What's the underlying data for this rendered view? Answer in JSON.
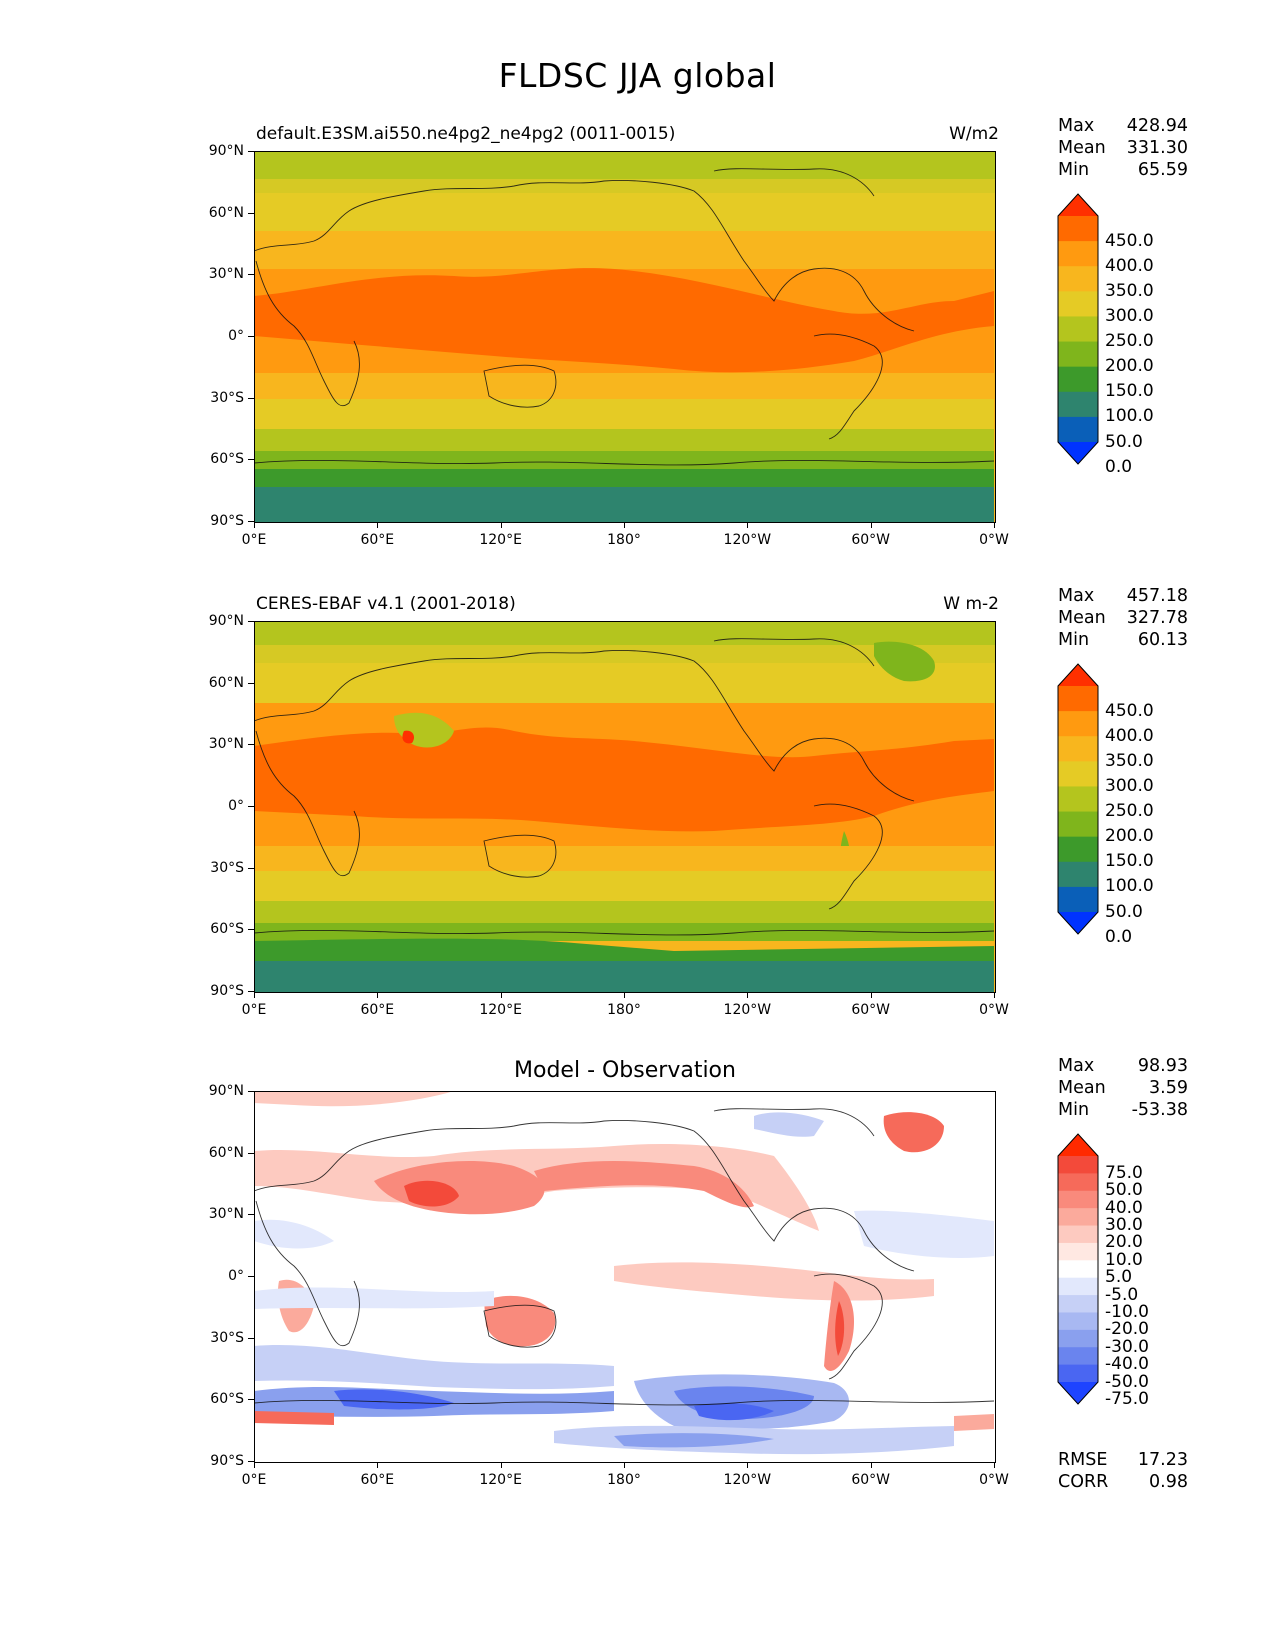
{
  "title": "FLDSC JJA global",
  "lat_labels": [
    "90°N",
    "60°N",
    "30°N",
    "0°",
    "30°S",
    "60°S",
    "90°S"
  ],
  "lon_labels": [
    "0°E",
    "60°E",
    "120°E",
    "180°",
    "120°W",
    "60°W",
    "0°W"
  ],
  "panels": [
    {
      "left_title": "default.E3SM.ai550.ne4pg2_ne4pg2 (0011-0015)",
      "right_title": "W/m2",
      "center_title": "",
      "stats": [
        {
          "label": "Max",
          "value": "428.94"
        },
        {
          "label": "Mean",
          "value": "331.30"
        },
        {
          "label": "Min",
          "value": "65.59"
        }
      ],
      "colorbar": {
        "labels": [
          "450.0",
          "400.0",
          "350.0",
          "300.0",
          "250.0",
          "200.0",
          "150.0",
          "100.0",
          "50.0",
          "0.0"
        ],
        "colors": [
          "#ff3000",
          "#ff6a00",
          "#ff9a10",
          "#f8b61e",
          "#e5cb25",
          "#b4c51e",
          "#7fb51c",
          "#3d9a2b",
          "#2e846e",
          "#0a5fb8",
          "#0033ff"
        ]
      },
      "extra_stats": []
    },
    {
      "left_title": "CERES-EBAF v4.1 (2001-2018)",
      "right_title": "W m-2",
      "center_title": "",
      "stats": [
        {
          "label": "Max",
          "value": "457.18"
        },
        {
          "label": "Mean",
          "value": "327.78"
        },
        {
          "label": "Min",
          "value": "60.13"
        }
      ],
      "colorbar": {
        "labels": [
          "450.0",
          "400.0",
          "350.0",
          "300.0",
          "250.0",
          "200.0",
          "150.0",
          "100.0",
          "50.0",
          "0.0"
        ],
        "colors": [
          "#ff3000",
          "#ff6a00",
          "#ff9a10",
          "#f8b61e",
          "#e5cb25",
          "#b4c51e",
          "#7fb51c",
          "#3d9a2b",
          "#2e846e",
          "#0a5fb8",
          "#0033ff"
        ]
      },
      "extra_stats": []
    },
    {
      "left_title": "",
      "right_title": "",
      "center_title": "Model - Observation",
      "stats": [
        {
          "label": "Max",
          "value": "98.93"
        },
        {
          "label": "Mean",
          "value": "3.59"
        },
        {
          "label": "Min",
          "value": "-53.38"
        }
      ],
      "colorbar": {
        "labels": [
          "75.0",
          "50.0",
          "40.0",
          "30.0",
          "20.0",
          "10.0",
          "5.0",
          "-5.0",
          "-10.0",
          "-20.0",
          "-30.0",
          "-40.0",
          "-50.0",
          "-75.0"
        ],
        "colors": [
          "#ff2a00",
          "#f34a3a",
          "#f66a5a",
          "#f98a7c",
          "#fbaa9c",
          "#fdcac0",
          "#ffe8e2",
          "#ffffff",
          "#e2e8fc",
          "#c6d0f6",
          "#a8b8f2",
          "#8aa0ee",
          "#6a84ee",
          "#4a66f2",
          "#1e44ff"
        ]
      },
      "extra_stats": [
        {
          "label": "RMSE",
          "value": "17.23"
        },
        {
          "label": "CORR",
          "value": "0.98"
        }
      ]
    }
  ]
}
